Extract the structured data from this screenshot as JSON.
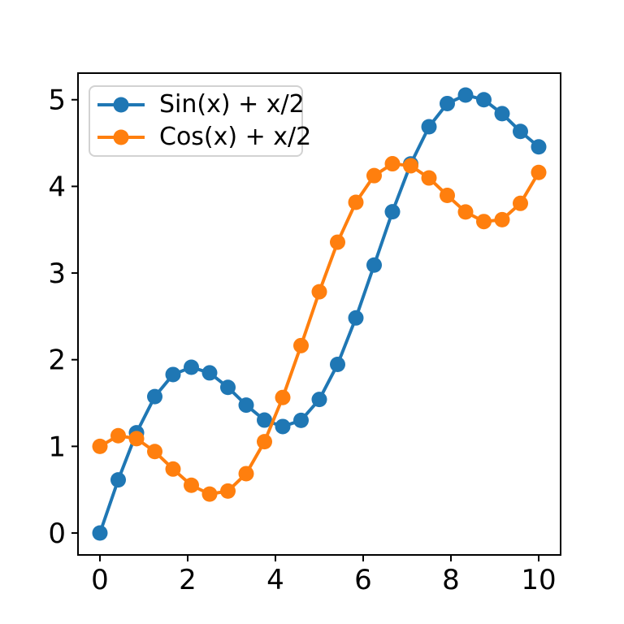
{
  "figure": {
    "background": "#ffffff",
    "axes_color": "#000000"
  },
  "chart_data": {
    "type": "line",
    "title": "",
    "xlabel": "",
    "ylabel": "",
    "grid": false,
    "legend_position": "upper-left",
    "marker": "circle",
    "xlim": [
      -0.5,
      10.5
    ],
    "ylim": [
      -0.253,
      5.307
    ],
    "xticks": [
      0,
      2,
      4,
      6,
      8,
      10
    ],
    "yticks": [
      0,
      1,
      2,
      3,
      4,
      5
    ],
    "x": [
      0,
      0.4167,
      0.8333,
      1.25,
      1.6667,
      2.0833,
      2.5,
      2.9167,
      3.3333,
      3.75,
      4.1667,
      4.5833,
      5,
      5.4167,
      5.8333,
      6.25,
      6.6667,
      7.0833,
      7.5,
      7.9167,
      8.3333,
      8.75,
      9.1667,
      9.5833,
      10
    ],
    "series": [
      {
        "name": "Sin(x) + x/2",
        "color": "#1f77b4",
        "values": [
          0,
          0.613,
          1.157,
          1.574,
          1.829,
          1.913,
          1.848,
          1.681,
          1.476,
          1.303,
          1.229,
          1.3,
          1.541,
          1.946,
          2.482,
          3.092,
          3.707,
          4.259,
          4.688,
          4.956,
          5.054,
          5.0,
          4.839,
          4.634,
          4.456
        ]
      },
      {
        "name": "Cos(x) + x/2",
        "color": "#ff7f0e",
        "values": [
          1,
          1.123,
          1.089,
          0.94,
          0.738,
          0.551,
          0.449,
          0.484,
          0.685,
          1.054,
          1.564,
          2.163,
          2.784,
          3.356,
          3.816,
          4.124,
          4.261,
          4.238,
          4.097,
          3.896,
          3.705,
          3.594,
          3.616,
          3.804,
          4.161
        ]
      }
    ]
  },
  "legend": {
    "items": [
      {
        "label": "Sin(x) + x/2",
        "color": "#1f77b4"
      },
      {
        "label": "Cos(x) + x/2",
        "color": "#ff7f0e"
      }
    ]
  }
}
